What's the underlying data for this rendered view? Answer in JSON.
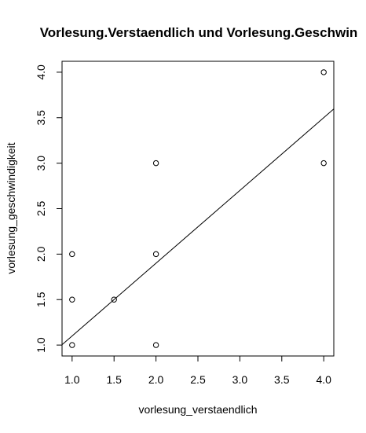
{
  "chart_data": {
    "type": "scatter",
    "title": "Vorlesung.Verstaendlich und Vorlesung.Geschwin",
    "xlabel": "vorlesung_verstaendlich",
    "ylabel": "vorlesung_geschwindigkeit",
    "xlim": [
      0.88,
      4.12
    ],
    "ylim": [
      0.88,
      4.12
    ],
    "x_ticks": [
      "1.0",
      "1.5",
      "2.0",
      "2.5",
      "3.0",
      "3.5",
      "4.0"
    ],
    "y_ticks": [
      "1.0",
      "1.5",
      "2.0",
      "2.5",
      "3.0",
      "3.5",
      "4.0"
    ],
    "points": [
      {
        "x": 1.0,
        "y": 1.0
      },
      {
        "x": 1.0,
        "y": 1.5
      },
      {
        "x": 1.0,
        "y": 2.0
      },
      {
        "x": 1.5,
        "y": 1.5
      },
      {
        "x": 2.0,
        "y": 1.0
      },
      {
        "x": 2.0,
        "y": 2.0
      },
      {
        "x": 2.0,
        "y": 3.0
      },
      {
        "x": 4.0,
        "y": 3.0
      },
      {
        "x": 4.0,
        "y": 4.0
      }
    ],
    "regression_line": {
      "intercept": 0.3,
      "slope": 0.8
    },
    "marker": "open-circle",
    "grid": false,
    "colors": {
      "points": "#000000",
      "line": "#000000",
      "background": "#ffffff"
    }
  }
}
